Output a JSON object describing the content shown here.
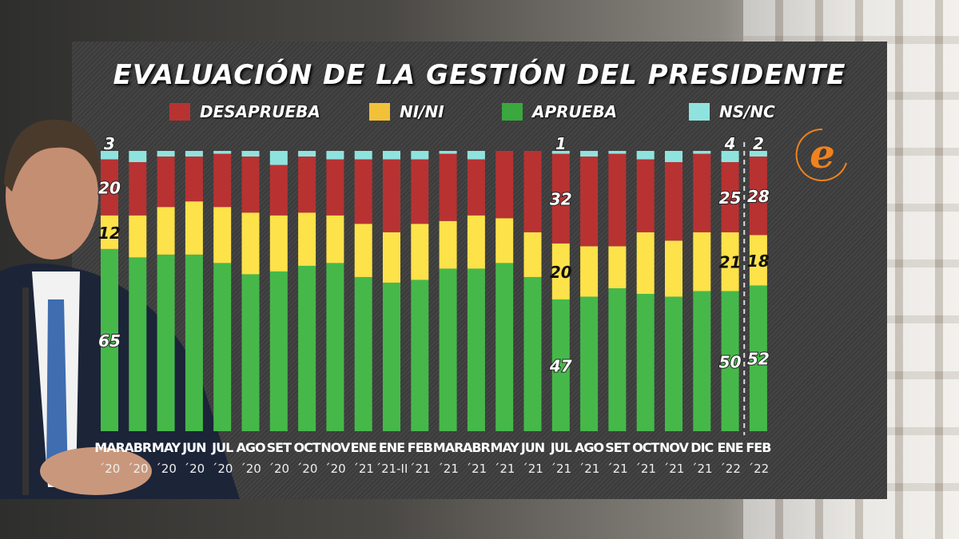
{
  "chart_data": {
    "type": "bar",
    "stacked": true,
    "title": "EVALUACIÓN DE LA GESTIÓN DEL PRESIDENTE",
    "legend_position": "top",
    "categories": [
      {
        "month": "MAR",
        "year": "´20"
      },
      {
        "month": "ABR",
        "year": "´20"
      },
      {
        "month": "MAY",
        "year": "´20"
      },
      {
        "month": "JUN",
        "year": "´20"
      },
      {
        "month": "JUL",
        "year": "´20"
      },
      {
        "month": "AGO",
        "year": "´20"
      },
      {
        "month": "SET",
        "year": "´20"
      },
      {
        "month": "OCT",
        "year": "´20"
      },
      {
        "month": "NOV",
        "year": "´20"
      },
      {
        "month": "ENE",
        "year": "´21"
      },
      {
        "month": "ENE",
        "year": "´21-II"
      },
      {
        "month": "FEB",
        "year": "´21"
      },
      {
        "month": "MAR",
        "year": "´21"
      },
      {
        "month": "ABR",
        "year": "´21"
      },
      {
        "month": "MAY",
        "year": "´21"
      },
      {
        "month": "JUN",
        "year": "´21"
      },
      {
        "month": "JUL",
        "year": "´21"
      },
      {
        "month": "AGO",
        "year": "´21"
      },
      {
        "month": "SET",
        "year": "´21"
      },
      {
        "month": "OCT",
        "year": "´21"
      },
      {
        "month": "NOV",
        "year": "´21"
      },
      {
        "month": "DIC",
        "year": "´21"
      },
      {
        "month": "ENE",
        "year": "´22"
      },
      {
        "month": "FEB",
        "year": "´22"
      }
    ],
    "series": [
      {
        "name": "APRUEBA",
        "color": "#46b84a",
        "values": [
          65,
          62,
          63,
          63,
          60,
          56,
          57,
          59,
          60,
          55,
          53,
          54,
          58,
          58,
          60,
          55,
          47,
          48,
          51,
          49,
          48,
          50,
          50,
          52
        ]
      },
      {
        "name": "NI/NI",
        "color": "#fde24a",
        "values": [
          12,
          15,
          17,
          19,
          20,
          22,
          20,
          19,
          17,
          19,
          18,
          20,
          17,
          19,
          16,
          16,
          20,
          18,
          15,
          22,
          20,
          21,
          21,
          18
        ]
      },
      {
        "name": "DESAPRUEBA",
        "color": "#b83232",
        "values": [
          20,
          19,
          18,
          16,
          19,
          20,
          18,
          20,
          20,
          23,
          26,
          23,
          24,
          20,
          24,
          29,
          32,
          32,
          33,
          26,
          28,
          28,
          25,
          28
        ]
      },
      {
        "name": "NS/NC",
        "color": "#8fe3de",
        "values": [
          3,
          4,
          2,
          2,
          1,
          2,
          5,
          2,
          3,
          3,
          3,
          3,
          1,
          3,
          0,
          0,
          1,
          2,
          1,
          3,
          4,
          1,
          4,
          2
        ]
      }
    ],
    "legend_order": [
      "DESAPRUEBA",
      "NI/NI",
      "APRUEBA",
      "NS/NC"
    ],
    "labeled_bars": [
      0,
      16,
      22,
      23
    ],
    "ylim": [
      0,
      100
    ]
  },
  "logo": {
    "text": "e",
    "color": "#f0821e"
  }
}
